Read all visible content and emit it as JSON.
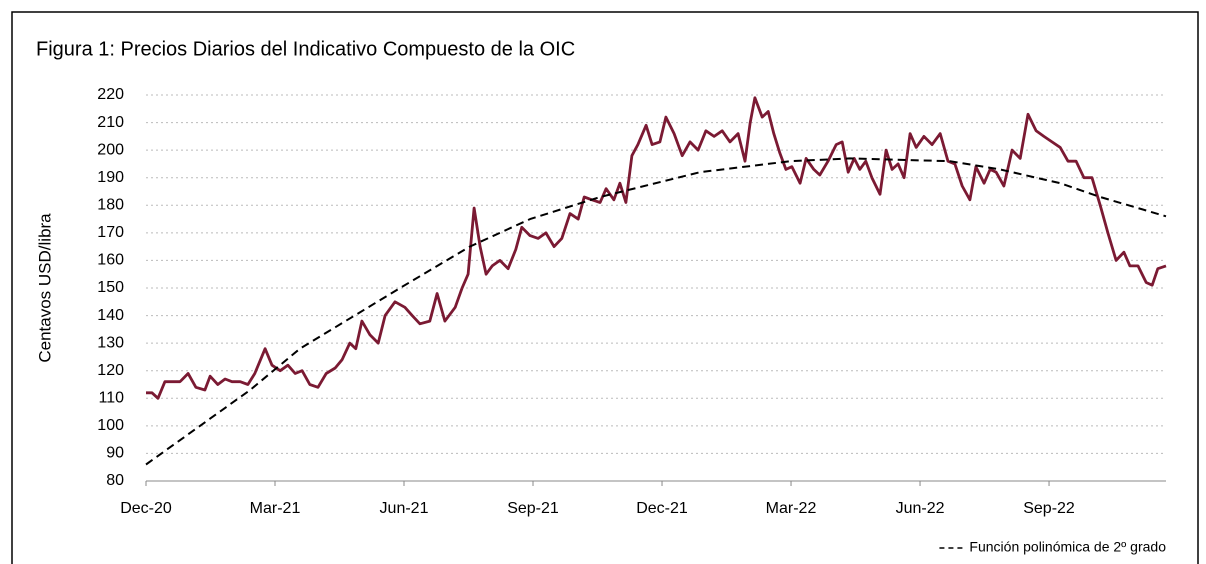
{
  "chart_data": {
    "type": "line",
    "title": "Figura 1: Precios Diarios del Indicativo Compuesto de la OIC",
    "ylabel": "Centavos USD/libra",
    "xlim": [
      0,
      23.72
    ],
    "ylim": [
      80,
      220
    ],
    "yticks": [
      80,
      90,
      100,
      110,
      120,
      130,
      140,
      150,
      160,
      170,
      180,
      190,
      200,
      210,
      220
    ],
    "xticks": [
      {
        "value": 0,
        "label": "Dec-20"
      },
      {
        "value": 3,
        "label": "Mar-21"
      },
      {
        "value": 6,
        "label": "Jun-21"
      },
      {
        "value": 9,
        "label": "Sep-21"
      },
      {
        "value": 12,
        "label": "Dec-21"
      },
      {
        "value": 15,
        "label": "Mar-22"
      },
      {
        "value": 18,
        "label": "Jun-22"
      },
      {
        "value": 21,
        "label": "Sep-22"
      }
    ],
    "grid": true,
    "series": [
      {
        "color": "#7b1a33",
        "style": "solid",
        "x": [
          0,
          0.14,
          0.28,
          0.44,
          0.6,
          0.79,
          0.98,
          1.16,
          1.37,
          1.49,
          1.67,
          1.84,
          2,
          2.19,
          2.37,
          2.53,
          2.77,
          2.93,
          3.12,
          3.3,
          3.47,
          3.63,
          3.81,
          4,
          4.19,
          4.4,
          4.56,
          4.74,
          4.88,
          5.02,
          5.21,
          5.4,
          5.56,
          5.79,
          6.02,
          6.19,
          6.37,
          6.6,
          6.77,
          6.95,
          7.19,
          7.35,
          7.49,
          7.63,
          7.77,
          7.91,
          8.05,
          8.23,
          8.42,
          8.6,
          8.74,
          8.93,
          9.12,
          9.3,
          9.49,
          9.67,
          9.86,
          10.05,
          10.19,
          10.37,
          10.56,
          10.7,
          10.88,
          11.02,
          11.16,
          11.3,
          11.44,
          11.63,
          11.77,
          11.95,
          12.09,
          12.28,
          12.47,
          12.65,
          12.84,
          13.02,
          13.21,
          13.4,
          13.58,
          13.77,
          13.93,
          14.05,
          14.16,
          14.33,
          14.47,
          14.6,
          14.74,
          14.88,
          15.02,
          15.21,
          15.35,
          15.53,
          15.67,
          15.86,
          16.05,
          16.19,
          16.33,
          16.47,
          16.6,
          16.74,
          16.88,
          17.07,
          17.21,
          17.35,
          17.49,
          17.63,
          17.77,
          17.91,
          18.09,
          18.28,
          18.47,
          18.65,
          18.81,
          18.98,
          19.16,
          19.3,
          19.49,
          19.63,
          19.77,
          19.95,
          20.14,
          20.33,
          20.51,
          20.7,
          20.88,
          21.07,
          21.26,
          21.44,
          21.63,
          21.81,
          22,
          22.19,
          22.37,
          22.56,
          22.74,
          22.88,
          23.07,
          23.26,
          23.4,
          23.53,
          23.72
        ],
        "values": [
          112,
          112,
          110,
          116,
          116,
          116,
          119,
          114,
          113,
          118,
          115,
          117,
          116,
          116,
          115,
          119,
          128,
          122,
          120,
          122,
          119,
          120,
          115,
          114,
          119,
          121,
          124,
          130,
          128,
          138,
          133,
          130,
          140,
          145,
          143,
          140,
          137,
          138,
          148,
          138,
          143,
          150,
          155,
          179,
          165,
          155,
          158,
          160,
          157,
          164,
          172,
          169,
          168,
          170,
          165,
          168,
          177,
          175,
          183,
          182,
          181,
          186,
          182,
          188,
          181,
          198,
          202,
          209,
          202,
          203,
          212,
          206,
          198,
          203,
          200,
          207,
          205,
          207,
          203,
          206,
          196,
          210,
          219,
          212,
          214,
          206,
          199,
          193,
          194,
          188,
          197,
          193,
          191,
          196,
          202,
          203,
          192,
          197,
          193,
          196,
          190,
          184,
          200,
          193,
          195,
          190,
          206,
          201,
          205,
          202,
          206,
          196,
          195,
          187,
          182,
          194,
          188,
          193,
          192,
          187,
          200,
          197,
          213,
          207,
          205,
          203,
          201,
          196,
          196,
          190,
          190,
          180,
          170,
          160,
          163,
          158,
          158,
          152,
          151,
          157,
          158
        ]
      },
      {
        "name": "Función polinómica de 2º grado",
        "color": "#000000",
        "style": "dashed",
        "x": [
          0,
          2.42,
          3.58,
          5.91,
          7.53,
          8.93,
          10.56,
          12.88,
          14.98,
          16.37,
          18.7,
          19.86,
          21.26,
          22.19,
          23.72
        ],
        "values": [
          86,
          113,
          128,
          150,
          165,
          175,
          183,
          192,
          196,
          197,
          196,
          193,
          188,
          183,
          176
        ]
      }
    ]
  }
}
